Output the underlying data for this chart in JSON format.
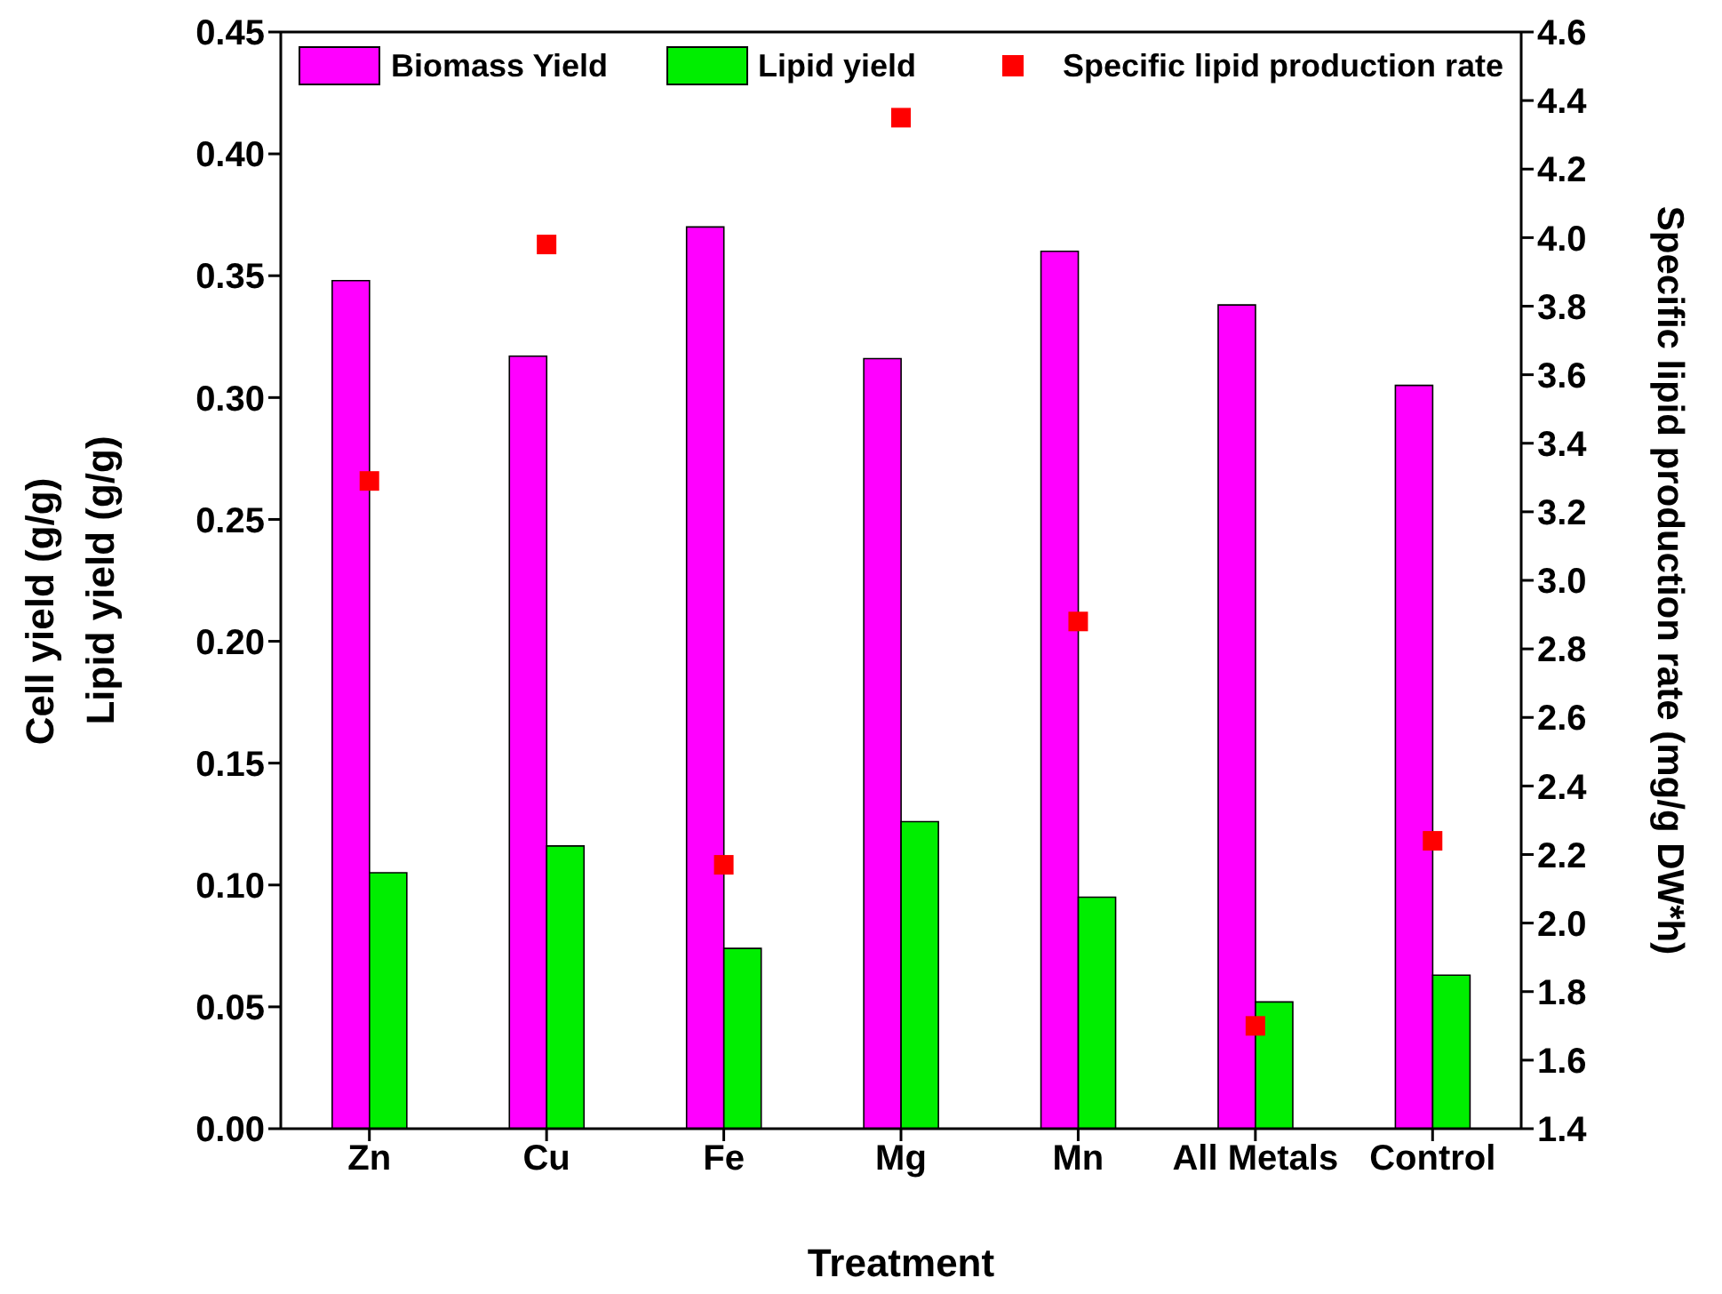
{
  "chart_data": {
    "type": "bar",
    "xlabel": "Treatment",
    "ylabel": "Lipid yield (g/g)",
    "y2label": "Specific lipid production rate (mg/g DW*h)",
    "annotations": [
      "Cell yield (g/g)"
    ],
    "categories": [
      "Zn",
      "Cu",
      "Fe",
      "Mg",
      "Mn",
      "All Metals",
      "Control"
    ],
    "series": [
      {
        "name": "Biomass Yield",
        "color": "#ff00ff",
        "values": [
          0.348,
          0.317,
          0.37,
          0.316,
          0.36,
          0.338,
          0.305
        ]
      },
      {
        "name": "Lipid yield",
        "color": "#00ee00",
        "values": [
          0.105,
          0.116,
          0.074,
          0.126,
          0.095,
          0.052,
          0.063
        ]
      },
      {
        "name": "Specific lipid production rate",
        "type": "scatter",
        "axis": "y2",
        "marker": "square",
        "color": "#ff0000",
        "values": [
          3.29,
          3.98,
          2.17,
          4.35,
          2.88,
          1.7,
          2.24
        ]
      }
    ],
    "ylim": [
      0,
      0.45
    ],
    "yticks": [
      {
        "value": 0,
        "label": "0.00"
      },
      0.05,
      {
        "value": 0.1,
        "label": "0.10"
      },
      0.15,
      {
        "value": 0.2,
        "label": "0.20"
      },
      0.25,
      {
        "value": 0.3,
        "label": "0.30"
      },
      0.35,
      {
        "value": 0.4,
        "label": "0.40"
      },
      0.45
    ],
    "y2lim": [
      1.4,
      4.6
    ],
    "y2ticks": [
      1.4,
      1.6,
      1.8,
      {
        "value": 2,
        "label": "2.0"
      },
      2.2,
      2.4,
      2.6,
      2.8,
      {
        "value": 3,
        "label": "3.0"
      },
      3.2,
      3.4,
      3.6,
      3.8,
      {
        "value": 4,
        "label": "4.0"
      },
      4.2,
      4.4,
      4.6
    ],
    "legend": "top",
    "grid": false
  }
}
